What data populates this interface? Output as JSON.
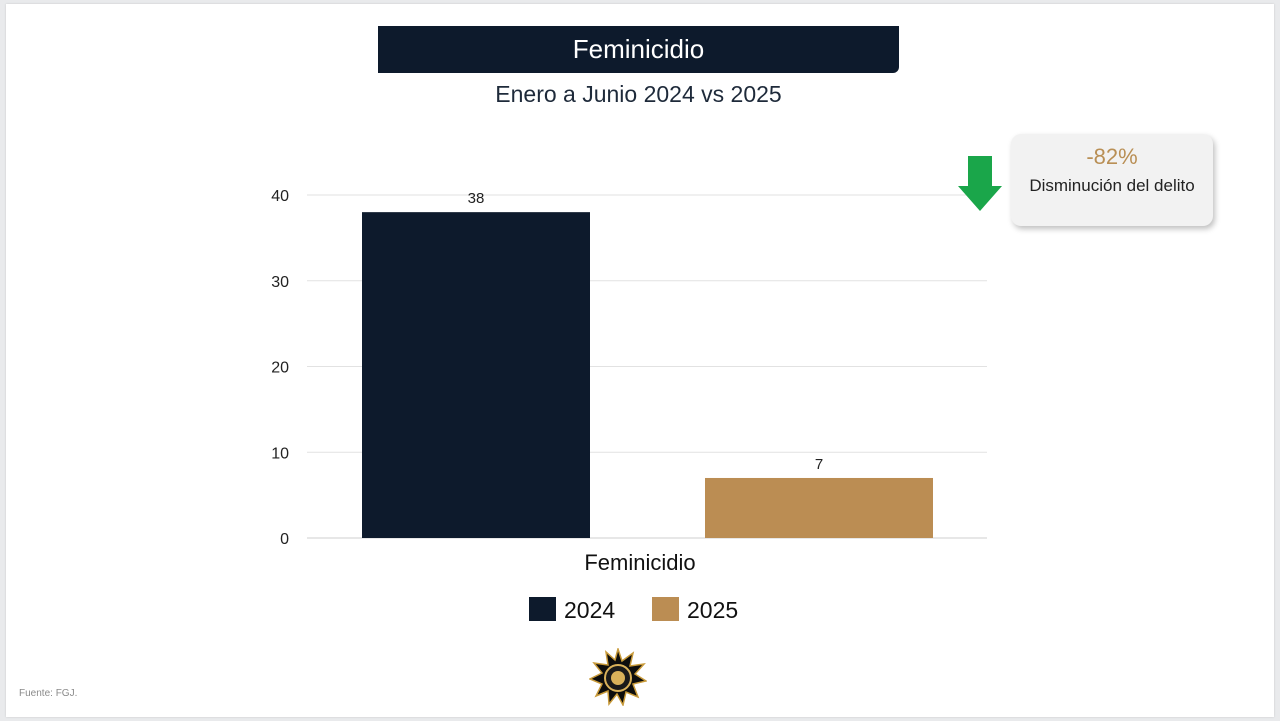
{
  "title": "Feminicidio",
  "subtitle": "Enero a Junio 2024 vs 2025",
  "callout": {
    "value": "-82%",
    "text": "Disminución del delito",
    "arrow_icon": "arrow-down-icon",
    "arrow_color": "#1aa64a",
    "value_color": "#b98f55"
  },
  "source": "Fuente: FGJ.",
  "chart_data": {
    "type": "bar",
    "categories": [
      "Feminicidio"
    ],
    "series": [
      {
        "name": "2024",
        "values": [
          38
        ],
        "color": "#0d1a2c"
      },
      {
        "name": "2025",
        "values": [
          7
        ],
        "color": "#bb8d53"
      }
    ],
    "ylim": [
      0,
      40
    ],
    "yticks": [
      0,
      10,
      20,
      30,
      40
    ],
    "grid": true,
    "legend": "bottom",
    "data_labels": true
  }
}
